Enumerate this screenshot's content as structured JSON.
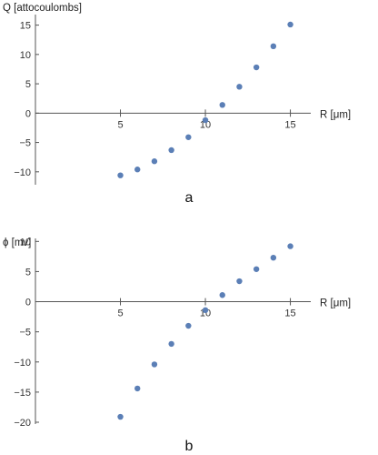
{
  "chart_data": [
    {
      "type": "scatter",
      "panel_label": "a",
      "xlabel": "R [μm]",
      "ylabel": "Q [attocoulombs]",
      "xlim": [
        0,
        16.2
      ],
      "ylim": [
        -12.2,
        16.8
      ],
      "x_ticks": [
        "5",
        "10",
        "15"
      ],
      "y_ticks": [
        "-10",
        "-5",
        "0",
        "5",
        "10",
        "15"
      ],
      "point_color": "#5b7fb6",
      "series": [
        {
          "x": [
            5,
            6,
            7,
            8,
            9,
            10,
            11,
            12,
            13,
            14,
            15
          ],
          "values": [
            -10.6,
            -9.6,
            -8.2,
            -6.3,
            -4.1,
            -1.2,
            1.4,
            4.5,
            7.8,
            11.4,
            15.1
          ]
        }
      ]
    },
    {
      "type": "scatter",
      "panel_label": "b",
      "xlabel": "R [μm]",
      "ylabel": "ϕ [mv]",
      "xlim": [
        0,
        16.2
      ],
      "ylim": [
        -20.3,
        10.5
      ],
      "x_ticks": [
        "5",
        "10",
        "15"
      ],
      "y_ticks": [
        "-20",
        "-15",
        "-10",
        "-5",
        "0",
        "5",
        "10"
      ],
      "point_color": "#5b7fb6",
      "series": [
        {
          "x": [
            5,
            6,
            7,
            8,
            9,
            10,
            11,
            12,
            13,
            14,
            15
          ],
          "values": [
            -19.1,
            -14.4,
            -10.4,
            -7.0,
            -4.0,
            -1.4,
            1.1,
            3.4,
            5.4,
            7.3,
            9.2
          ]
        }
      ]
    }
  ]
}
